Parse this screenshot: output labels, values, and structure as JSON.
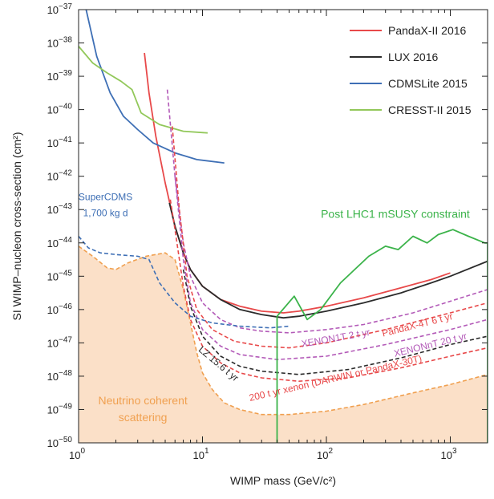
{
  "chart_data": {
    "type": "line",
    "xlabel": "WIMP mass (GeV/c²)",
    "ylabel": "SI WIMP–nucleon cross-section (cm²)",
    "xscale": "log",
    "yscale": "log",
    "xlim": [
      1,
      2000
    ],
    "ylim": [
      1e-50,
      1e-37
    ],
    "x_ticks": [
      {
        "value": 1,
        "base": "10",
        "exp": "0"
      },
      {
        "value": 10,
        "base": "10",
        "exp": "1"
      },
      {
        "value": 100,
        "base": "10",
        "exp": "2"
      },
      {
        "value": 1000,
        "base": "10",
        "exp": "3"
      }
    ],
    "y_ticks": [
      {
        "value": -37,
        "base": "10",
        "exp": "−37"
      },
      {
        "value": -38,
        "base": "10",
        "exp": "−38"
      },
      {
        "value": -39,
        "base": "10",
        "exp": "−39"
      },
      {
        "value": -40,
        "base": "10",
        "exp": "−40"
      },
      {
        "value": -41,
        "base": "10",
        "exp": "−41"
      },
      {
        "value": -42,
        "base": "10",
        "exp": "−42"
      },
      {
        "value": -43,
        "base": "10",
        "exp": "−43"
      },
      {
        "value": -44,
        "base": "10",
        "exp": "−44"
      },
      {
        "value": -45,
        "base": "10",
        "exp": "−45"
      },
      {
        "value": -46,
        "base": "10",
        "exp": "−46"
      },
      {
        "value": -47,
        "base": "10",
        "exp": "−47"
      },
      {
        "value": -48,
        "base": "10",
        "exp": "−48"
      },
      {
        "value": -49,
        "base": "10",
        "exp": "−49"
      },
      {
        "value": -50,
        "base": "10",
        "exp": "−50"
      }
    ],
    "legend_position": "top-right",
    "series": [
      {
        "name": "PandaX-II 2016",
        "color": "#e8494a",
        "style": "solid",
        "legend": true,
        "points": [
          [
            3.4,
            -38.3
          ],
          [
            3.7,
            -39.5
          ],
          [
            4.2,
            -40.8
          ],
          [
            5,
            -42.2
          ],
          [
            6,
            -43.5
          ],
          [
            7,
            -44.3
          ],
          [
            8,
            -44.8
          ],
          [
            10,
            -45.3
          ],
          [
            14,
            -45.7
          ],
          [
            20,
            -45.9
          ],
          [
            30,
            -46.05
          ],
          [
            45,
            -46.1
          ],
          [
            60,
            -46.05
          ],
          [
            100,
            -45.9
          ],
          [
            200,
            -45.65
          ],
          [
            400,
            -45.35
          ],
          [
            700,
            -45.1
          ],
          [
            1000,
            -44.9
          ]
        ]
      },
      {
        "name": "LUX 2016",
        "color": "#2b2b2b",
        "style": "solid",
        "legend": true,
        "points": [
          [
            5.4,
            -42.8
          ],
          [
            6,
            -43.5
          ],
          [
            7,
            -44.3
          ],
          [
            8,
            -44.8
          ],
          [
            10,
            -45.3
          ],
          [
            14,
            -45.7
          ],
          [
            20,
            -46.0
          ],
          [
            30,
            -46.15
          ],
          [
            45,
            -46.25
          ],
          [
            60,
            -46.2
          ],
          [
            100,
            -46.05
          ],
          [
            200,
            -45.8
          ],
          [
            400,
            -45.5
          ],
          [
            700,
            -45.2
          ],
          [
            1000,
            -45.0
          ],
          [
            2000,
            -44.55
          ]
        ]
      },
      {
        "name": "CDMSLite 2015",
        "color": "#3e6fb5",
        "style": "solid",
        "legend": true,
        "points": [
          [
            1.15,
            -37.0
          ],
          [
            1.4,
            -38.4
          ],
          [
            1.8,
            -39.5
          ],
          [
            2.3,
            -40.2
          ],
          [
            3,
            -40.6
          ],
          [
            4,
            -41.0
          ],
          [
            6,
            -41.3
          ],
          [
            9,
            -41.5
          ],
          [
            15,
            -41.6
          ]
        ]
      },
      {
        "name": "CRESST-II 2015",
        "color": "#92c85a",
        "style": "solid",
        "legend": true,
        "points": [
          [
            1.0,
            -38.1
          ],
          [
            1.3,
            -38.6
          ],
          [
            1.7,
            -38.9
          ],
          [
            2.2,
            -39.15
          ],
          [
            2.7,
            -39.4
          ],
          [
            3.2,
            -40.1
          ],
          [
            4.5,
            -40.45
          ],
          [
            7,
            -40.65
          ],
          [
            11,
            -40.7
          ]
        ]
      },
      {
        "name": "XENON1T 2 t yr",
        "color": "#b35ab8",
        "style": "dashed",
        "legend": false,
        "points": [
          [
            5.2,
            -39.4
          ],
          [
            6,
            -42.0
          ],
          [
            7,
            -44.0
          ],
          [
            8,
            -45.0
          ],
          [
            10,
            -45.8
          ],
          [
            14,
            -46.3
          ],
          [
            20,
            -46.55
          ],
          [
            30,
            -46.65
          ],
          [
            50,
            -46.7
          ],
          [
            100,
            -46.6
          ],
          [
            200,
            -46.45
          ],
          [
            500,
            -46.1
          ],
          [
            1000,
            -45.75
          ],
          [
            2000,
            -45.4
          ]
        ]
      },
      {
        "name": "PandaX-4T 6 t yr",
        "color": "#e8494a",
        "style": "dashed",
        "legend": false,
        "points": [
          [
            5.7,
            -40.5
          ],
          [
            6.5,
            -43.0
          ],
          [
            7.5,
            -45.0
          ],
          [
            9,
            -46.0
          ],
          [
            12,
            -46.6
          ],
          [
            18,
            -46.95
          ],
          [
            30,
            -47.1
          ],
          [
            50,
            -47.15
          ],
          [
            100,
            -47.0
          ],
          [
            300,
            -46.6
          ],
          [
            1000,
            -46.1
          ],
          [
            2000,
            -45.8
          ]
        ]
      },
      {
        "name": "XENONnT 20 t yr",
        "color": "#b35ab8",
        "style": "dashed",
        "legend": false,
        "points": [
          [
            6,
            -42.0
          ],
          [
            7,
            -44.5
          ],
          [
            8,
            -45.8
          ],
          [
            10,
            -46.6
          ],
          [
            14,
            -47.1
          ],
          [
            20,
            -47.35
          ],
          [
            40,
            -47.5
          ],
          [
            100,
            -47.4
          ],
          [
            300,
            -47.05
          ],
          [
            1000,
            -46.6
          ],
          [
            2000,
            -46.3
          ]
        ]
      },
      {
        "name": "LZ 15.6 t yr",
        "color": "#2b2b2b",
        "style": "dashed",
        "legend": false,
        "points": [
          [
            7,
            -44.8
          ],
          [
            8,
            -45.9
          ],
          [
            10,
            -46.8
          ],
          [
            14,
            -47.4
          ],
          [
            20,
            -47.7
          ],
          [
            30,
            -47.85
          ],
          [
            60,
            -47.95
          ],
          [
            150,
            -47.8
          ],
          [
            400,
            -47.45
          ],
          [
            1000,
            -47.05
          ],
          [
            2000,
            -46.8
          ]
        ]
      },
      {
        "name": "200 t yr xenon (DARWIN or PandaX-30T)",
        "color": "#e8494a",
        "style": "dashed",
        "legend": false,
        "points": [
          [
            5.5,
            -42.7
          ],
          [
            6,
            -43.6
          ],
          [
            7,
            -45.3
          ],
          [
            8,
            -46.3
          ],
          [
            10,
            -47.1
          ],
          [
            14,
            -47.6
          ],
          [
            20,
            -47.9
          ],
          [
            30,
            -48.05
          ],
          [
            60,
            -48.15
          ],
          [
            150,
            -48.05
          ],
          [
            400,
            -47.75
          ],
          [
            1000,
            -47.4
          ],
          [
            2000,
            -47.15
          ]
        ]
      },
      {
        "name": "SuperCDMS 1,700 kg d",
        "color": "#3e6fb5",
        "style": "dashed",
        "legend": false,
        "points": [
          [
            1.0,
            -43.8
          ],
          [
            1.2,
            -44.15
          ],
          [
            1.5,
            -44.3
          ],
          [
            2,
            -44.35
          ],
          [
            3,
            -44.4
          ],
          [
            3.7,
            -44.5
          ],
          [
            4.5,
            -45.2
          ],
          [
            6,
            -45.8
          ],
          [
            8,
            -46.2
          ],
          [
            12,
            -46.4
          ],
          [
            20,
            -46.5
          ],
          [
            35,
            -46.55
          ],
          [
            50,
            -46.5
          ]
        ]
      },
      {
        "name": "Neutrino coherent scattering",
        "color": "#f0a050",
        "style": "dashed",
        "fill": "#fbe0c8",
        "legend": false,
        "points": [
          [
            1.0,
            -44.1
          ],
          [
            1.3,
            -44.4
          ],
          [
            1.7,
            -44.75
          ],
          [
            2,
            -44.8
          ],
          [
            2.5,
            -44.6
          ],
          [
            3.5,
            -44.4
          ],
          [
            5,
            -44.3
          ],
          [
            6,
            -44.5
          ],
          [
            7,
            -45.4
          ],
          [
            8,
            -46.4
          ],
          [
            9,
            -47.3
          ],
          [
            10,
            -47.9
          ],
          [
            12,
            -48.4
          ],
          [
            15,
            -48.8
          ],
          [
            20,
            -49.0
          ],
          [
            30,
            -49.15
          ],
          [
            50,
            -49.15
          ],
          [
            100,
            -49.05
          ],
          [
            200,
            -48.85
          ],
          [
            500,
            -48.5
          ],
          [
            1000,
            -48.25
          ],
          [
            2000,
            -47.95
          ]
        ]
      },
      {
        "name": "Post LHC1 mSUSY constraint",
        "color": "#3bb34a",
        "style": "solid",
        "legend": false,
        "points": [
          [
            40,
            -50.0
          ],
          [
            40,
            -46.2
          ],
          [
            55,
            -45.6
          ],
          [
            70,
            -46.3
          ],
          [
            90,
            -46.0
          ],
          [
            130,
            -45.2
          ],
          [
            220,
            -44.4
          ],
          [
            300,
            -44.1
          ],
          [
            380,
            -44.2
          ],
          [
            500,
            -43.8
          ],
          [
            650,
            -44.0
          ],
          [
            800,
            -43.75
          ],
          [
            1050,
            -43.6
          ],
          [
            1400,
            -43.8
          ],
          [
            1900,
            -44.0
          ],
          [
            2000,
            -44.0
          ],
          [
            2000,
            -50.0
          ]
        ]
      }
    ],
    "annotations": [
      {
        "text": "SuperCDMS",
        "x": 1.65,
        "y": -42.72,
        "color": "#3e6fb5",
        "size": "small",
        "rotate": 0
      },
      {
        "text": "1,700 kg d",
        "x": 1.65,
        "y": -43.2,
        "color": "#3e6fb5",
        "size": "small",
        "rotate": 0
      },
      {
        "text": "Post LHC1 mSUSY constraint",
        "x": 360,
        "y": -43.25,
        "color": "#3bb34a",
        "size": "big",
        "rotate": 0
      },
      {
        "text": "XENON1T 2 t yr",
        "x": 120,
        "y": -46.95,
        "color": "#b35ab8",
        "size": "small",
        "rotate": -10
      },
      {
        "text": "PandaX-4T 6 t yr",
        "x": 550,
        "y": -46.55,
        "color": "#e8494a",
        "size": "small",
        "rotate": -14
      },
      {
        "text": "XENONnT 20 t yr",
        "x": 700,
        "y": -47.15,
        "color": "#b35ab8",
        "size": "small",
        "rotate": -14
      },
      {
        "text": "LZ 15.6 t yr",
        "x": 13,
        "y": -47.7,
        "color": "#2b2b2b",
        "size": "small",
        "rotate": 40
      },
      {
        "text": "200 t yr xenon (DARWIN or PandaX-30T)",
        "x": 120,
        "y": -48.15,
        "color": "#e8494a",
        "size": "small",
        "rotate": -13
      },
      {
        "text": "Neutrino coherent",
        "x": 3.3,
        "y": -48.85,
        "color": "#f0a050",
        "size": "big",
        "rotate": 0
      },
      {
        "text": "scattering",
        "x": 3.3,
        "y": -49.35,
        "color": "#f0a050",
        "size": "big",
        "rotate": 0
      }
    ]
  }
}
